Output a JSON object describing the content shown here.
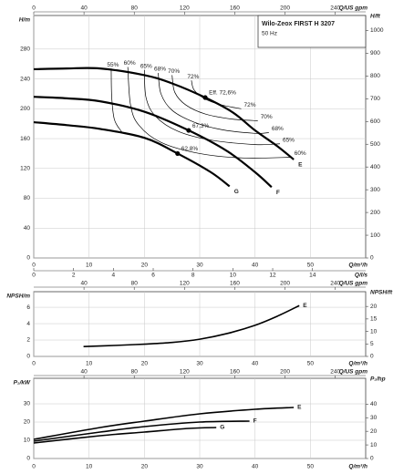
{
  "chart_data": [
    {
      "type": "line",
      "title": "Wilo-Zeox FIRST H 3207",
      "subtitle": "50 Hz",
      "ylabel": "H/m",
      "y2label": "H/ft",
      "xlabel": "Q/m³/h",
      "x2label": "Q/US gpm",
      "x3label": "Q/l/s",
      "xlim": [
        0,
        60
      ],
      "xticks": [
        0,
        10,
        20,
        30,
        40,
        50
      ],
      "x2lim": [
        0,
        264.2
      ],
      "x2ticks": [
        0,
        40,
        80,
        120,
        160,
        200,
        240
      ],
      "x3lim": [
        0,
        16.67
      ],
      "x3ticks": [
        0,
        2,
        4,
        6,
        8,
        10,
        12,
        14
      ],
      "ylim": [
        0,
        325
      ],
      "yticks": [
        0,
        40,
        80,
        120,
        160,
        200,
        240,
        280
      ],
      "y2lim": [
        0,
        1066
      ],
      "y2ticks": [
        0,
        100,
        200,
        300,
        400,
        500,
        600,
        700,
        800,
        900,
        1000
      ],
      "grid": true,
      "series": [
        {
          "name": "E",
          "color": "#000000",
          "x": [
            0,
            6,
            12,
            20,
            25,
            31,
            36,
            40,
            44,
            47
          ],
          "values": [
            253,
            254,
            254,
            245,
            234,
            215,
            195,
            171,
            150,
            132
          ]
        },
        {
          "name": "F",
          "color": "#000000",
          "x": [
            0,
            6,
            12,
            20,
            28,
            35,
            40,
            43
          ],
          "values": [
            216,
            214,
            210,
            196,
            171,
            143,
            115,
            95
          ]
        },
        {
          "name": "G",
          "color": "#000000",
          "x": [
            0,
            6,
            12,
            20,
            26,
            32,
            35.4
          ],
          "values": [
            182,
            178,
            173,
            161,
            140,
            115,
            96
          ]
        }
      ],
      "efficiency_curves": [
        {
          "name": "55%",
          "color": "#000000",
          "end_label": false,
          "x": [
            14,
            14.1,
            14.6,
            16
          ],
          "values": [
            254,
            215,
            185,
            168
          ]
        },
        {
          "name": "60%",
          "color": "#000000",
          "end_label": true,
          "x": [
            17,
            17.5,
            19,
            23,
            30,
            38,
            46.6
          ],
          "values": [
            256,
            205,
            178,
            155,
            140,
            134,
            135
          ]
        },
        {
          "name": "65%",
          "color": "#000000",
          "end_label": true,
          "x": [
            20,
            20.3,
            22,
            26,
            32,
            40,
            44.5
          ],
          "values": [
            252,
            215,
            190,
            170,
            158,
            152,
            153
          ]
        },
        {
          "name": "68%",
          "color": "#000000",
          "end_label": true,
          "x": [
            22.5,
            23,
            25,
            29,
            34,
            40,
            42.5
          ],
          "values": [
            248,
            220,
            198,
            182,
            172,
            167,
            168
          ]
        },
        {
          "name": "70%",
          "color": "#000000",
          "end_label": true,
          "x": [
            25,
            25.5,
            27.5,
            31,
            36,
            40.5
          ],
          "values": [
            245,
            222,
            205,
            193,
            186,
            184
          ]
        },
        {
          "name": "72%",
          "color": "#000000",
          "end_label": true,
          "x": [
            28.5,
            29,
            31,
            34,
            37.5
          ],
          "values": [
            238,
            225,
            213,
            205,
            200
          ]
        }
      ],
      "bep_points": [
        {
          "label": "Eff. 72,6%",
          "x": 31,
          "y": 215
        },
        {
          "label": "67,3%",
          "x": 28,
          "y": 171
        },
        {
          "label": "62,8%",
          "x": 26,
          "y": 140
        }
      ]
    },
    {
      "type": "line",
      "ylabel": "NPSH/m",
      "y2label": "NPSH/ft",
      "xlabel": "Q/m³/h",
      "x2label": "Q/US gpm",
      "xlim": [
        0,
        60
      ],
      "xticks": [
        0,
        10,
        20,
        30,
        40,
        50
      ],
      "x2lim": [
        0,
        264.2
      ],
      "x2ticks": [
        40,
        80,
        120,
        160,
        200,
        240
      ],
      "ylim": [
        0,
        7.9
      ],
      "yticks": [
        0,
        2,
        4,
        6
      ],
      "y2lim": [
        0,
        25.9
      ],
      "y2ticks": [
        0,
        5,
        10,
        15,
        20
      ],
      "grid": true,
      "series": [
        {
          "name": "E",
          "color": "#000000",
          "x": [
            9,
            15,
            20,
            25,
            30,
            35,
            40,
            44,
            48
          ],
          "values": [
            1.2,
            1.35,
            1.5,
            1.7,
            2.1,
            2.8,
            3.8,
            4.9,
            6.2
          ]
        }
      ]
    },
    {
      "type": "line",
      "ylabel": "P₂/kW",
      "y2label": "P₂/hp",
      "xlabel": "Q/m³/h",
      "x2label": "Q/US gpm",
      "xlim": [
        0,
        60
      ],
      "xticks": [
        0,
        10,
        20,
        30,
        40,
        50
      ],
      "x2lim": [
        0,
        264.2
      ],
      "x2ticks": [
        40,
        80,
        120,
        160,
        200,
        240
      ],
      "ylim": [
        0,
        44
      ],
      "yticks": [
        0,
        10,
        20,
        30
      ],
      "y2lim": [
        0,
        59
      ],
      "y2ticks": [
        0,
        10,
        20,
        30,
        40
      ],
      "grid": true,
      "series": [
        {
          "name": "E",
          "color": "#000000",
          "x": [
            0,
            12,
            20,
            30,
            40,
            47
          ],
          "values": [
            10.5,
            17,
            20.5,
            24.5,
            27,
            28
          ]
        },
        {
          "name": "F",
          "color": "#000000",
          "x": [
            0,
            12,
            20,
            30,
            39
          ],
          "values": [
            9.5,
            14.5,
            17.5,
            20,
            20.5
          ]
        },
        {
          "name": "G",
          "color": "#000000",
          "x": [
            0,
            12,
            20,
            28,
            33
          ],
          "values": [
            8.5,
            12.5,
            14.5,
            16.5,
            17
          ]
        }
      ]
    }
  ]
}
